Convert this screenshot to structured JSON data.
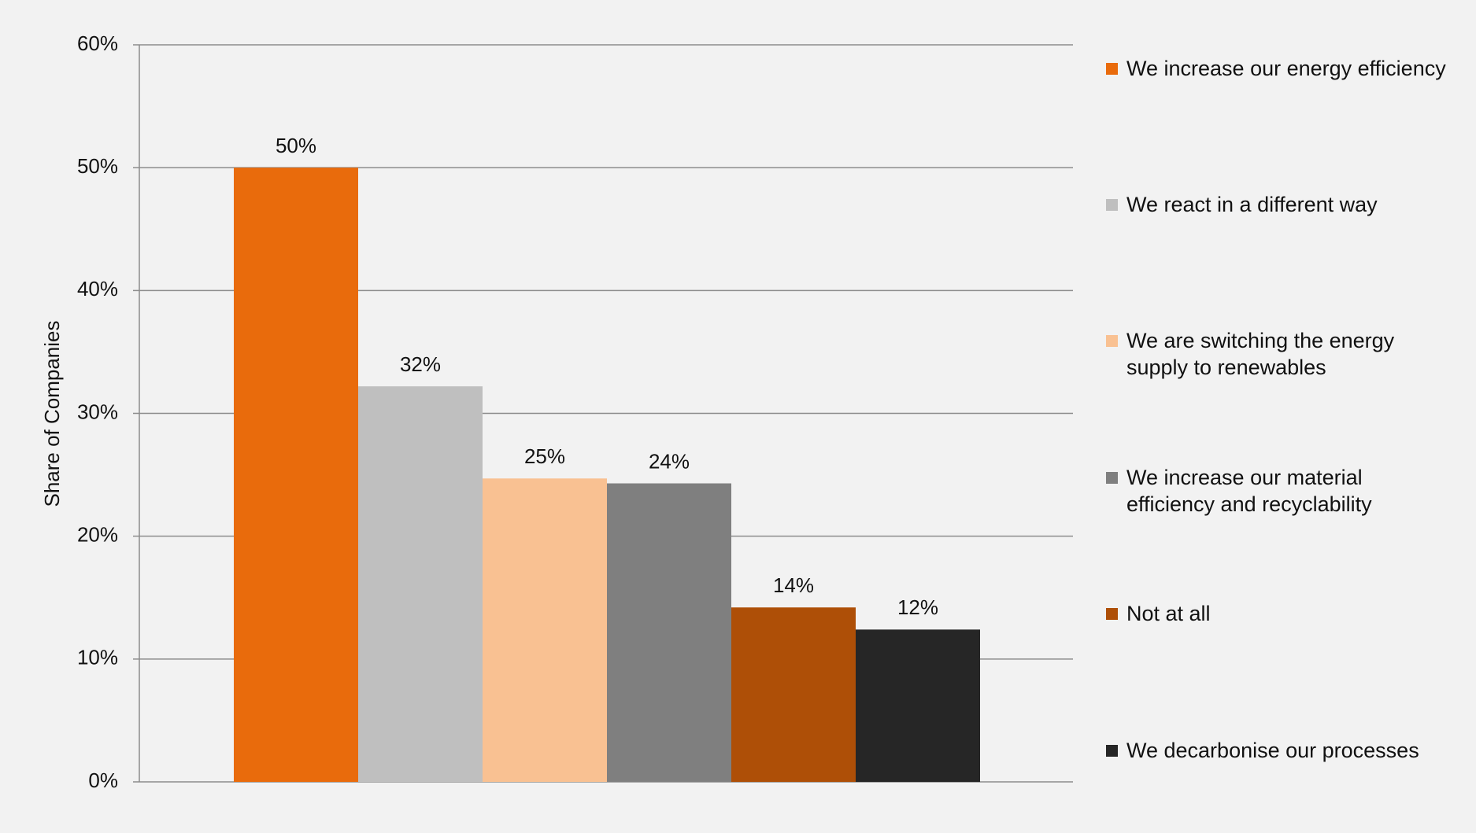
{
  "chart_data": {
    "type": "bar",
    "y_label": "Share of Companies",
    "categories": [
      null
    ],
    "series": [
      {
        "name": "We increase our energy efficiency",
        "color": "#e96b0c",
        "values": [
          50
        ],
        "value_labels": [
          "50%"
        ]
      },
      {
        "name": "We react in a different way",
        "color": "#bfbfbf",
        "values": [
          32.2
        ],
        "value_labels": [
          "32%"
        ]
      },
      {
        "name": "We are switching the energy supply to renewables",
        "color": "#f9c192",
        "values": [
          24.7
        ],
        "value_labels": [
          "25%"
        ]
      },
      {
        "name": "We increase our material efficiency and recyclability",
        "color": "#7f7f7f",
        "values": [
          24.3
        ],
        "value_labels": [
          "24%"
        ]
      },
      {
        "name": "Not at all",
        "color": "#ae4f07",
        "values": [
          14.2
        ],
        "value_labels": [
          "14%"
        ]
      },
      {
        "name": "We decarbonise our processes",
        "color": "#262626",
        "values": [
          12.4
        ],
        "value_labels": [
          "12%"
        ]
      }
    ],
    "ylim": [
      0,
      60
    ],
    "yticks": [
      {
        "value": 0,
        "label": "0%"
      },
      {
        "value": 10,
        "label": "10%"
      },
      {
        "value": 20,
        "label": "20%"
      },
      {
        "value": 30,
        "label": "30%"
      },
      {
        "value": 40,
        "label": "40%"
      },
      {
        "value": 50,
        "label": "50%"
      },
      {
        "value": 60,
        "label": "60%"
      }
    ],
    "grid": true,
    "legend": "right"
  }
}
